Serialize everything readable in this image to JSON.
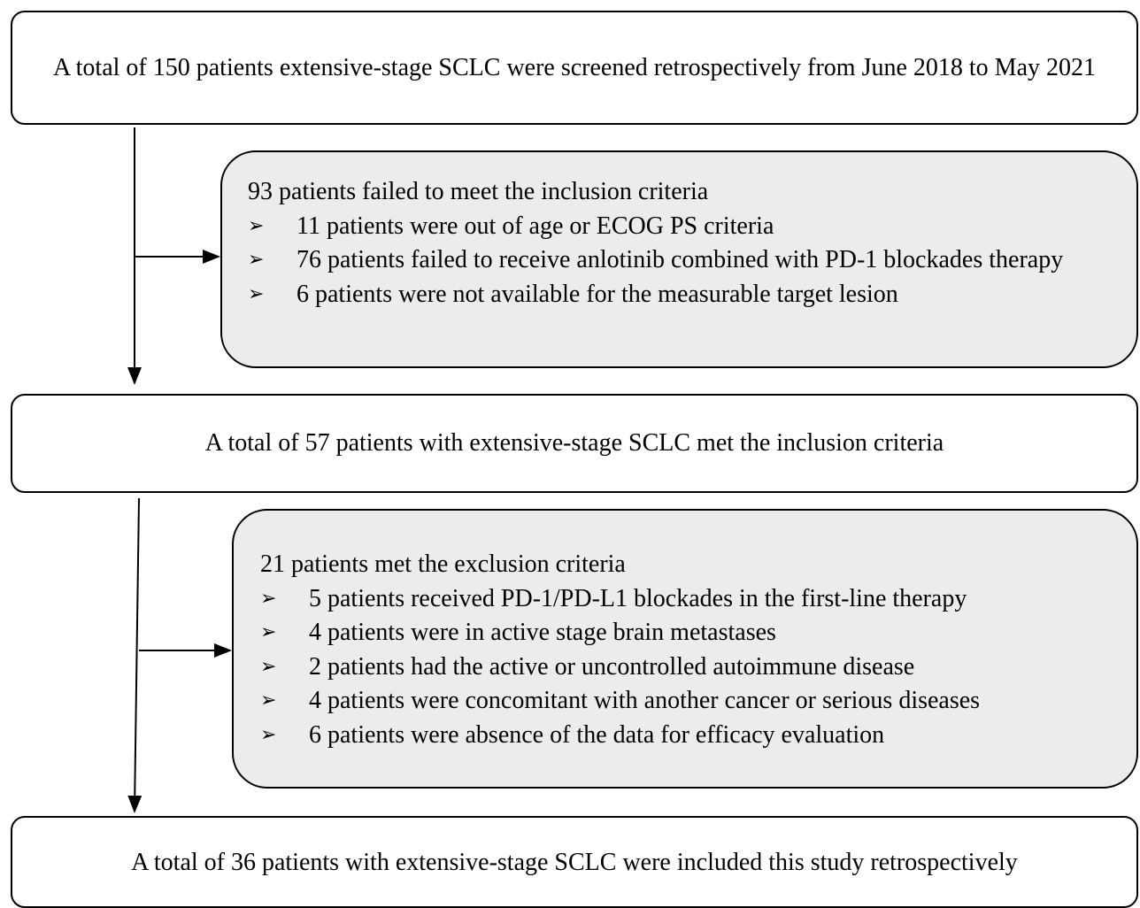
{
  "screened": {
    "text": "A total of 150 patients extensive-stage SCLC were screened retrospectively from June 2018 to May 2021"
  },
  "exclusion_1": {
    "title": "93 patients failed to meet the inclusion criteria",
    "items": [
      "11 patients were out of age or ECOG PS criteria",
      "76 patients failed to receive anlotinib combined with PD-1 blockades therapy",
      "6 patients were not available for the measurable target lesion"
    ]
  },
  "eligible": {
    "text": "A total of 57 patients with extensive-stage SCLC met the inclusion criteria"
  },
  "exclusion_2": {
    "title": "21 patients met the exclusion criteria",
    "items": [
      "5 patients received PD-1/PD-L1 blockades in the first-line therapy",
      "4 patients were in active stage brain metastases",
      "2 patients had the active or uncontrolled autoimmune disease",
      "4 patients were concomitant with another cancer or serious diseases",
      "6 patients were absence of the data for efficacy evaluation"
    ]
  },
  "included": {
    "text": "A total of 36 patients with extensive-stage SCLC were included this study retrospectively"
  }
}
